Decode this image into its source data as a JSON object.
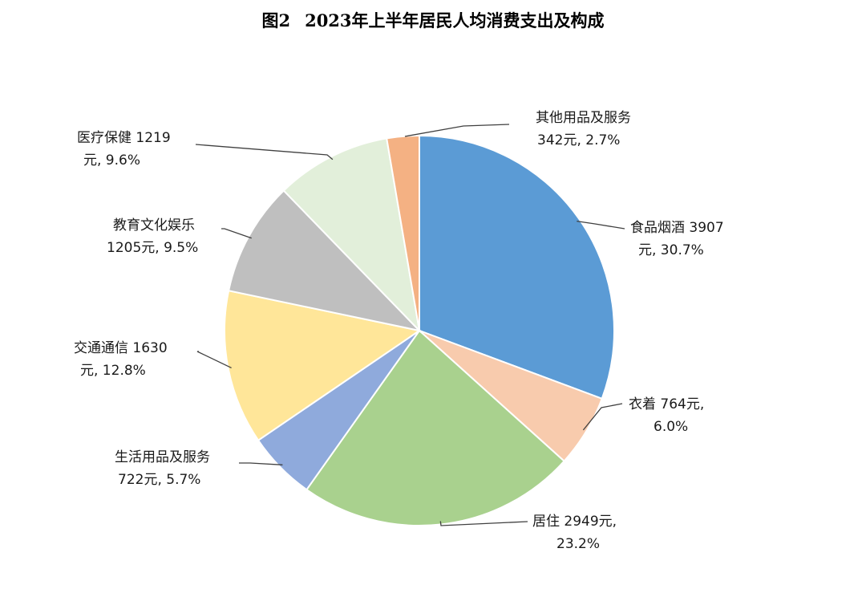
{
  "title": {
    "figure_no": "图2",
    "text": "2023年上半年居民人均消费支出及构成"
  },
  "chart_data": {
    "type": "pie",
    "title": "2023年上半年居民人均消费支出及构成",
    "slices": [
      {
        "name": "食品烟酒",
        "value": 3907,
        "percent": 30.7,
        "color": "#5b9bd5",
        "line1": "食品烟酒 3907",
        "line2": "元, 30.7%"
      },
      {
        "name": "衣着",
        "value": 764,
        "percent": 6.0,
        "color": "#f8cbad",
        "line1": "衣着 764元,",
        "line2": "6.0%"
      },
      {
        "name": "居住",
        "value": 2949,
        "percent": 23.2,
        "color": "#a9d18e",
        "line1": "居住 2949元,",
        "line2": "23.2%"
      },
      {
        "name": "生活用品及服务",
        "value": 722,
        "percent": 5.7,
        "color": "#8faadc",
        "line1": "生活用品及服务",
        "line2": "722元, 5.7%"
      },
      {
        "name": "交通通信",
        "value": 1630,
        "percent": 12.8,
        "color": "#ffe699",
        "line1": "交通通信 1630",
        "line2": "元, 12.8%"
      },
      {
        "name": "教育文化娱乐",
        "value": 1205,
        "percent": 9.5,
        "color": "#bfbfbf",
        "line1": "教育文化娱乐",
        "line2": "1205元, 9.5%"
      },
      {
        "name": "医疗保健",
        "value": 1219,
        "percent": 9.6,
        "color": "#e2efda",
        "line1": "医疗保健 1219",
        "line2": "元, 9.6%"
      },
      {
        "name": "其他用品及服务",
        "value": 342,
        "percent": 2.7,
        "color": "#f4b183",
        "line1": "其他用品及服务",
        "line2": "342元, 2.7%"
      }
    ]
  }
}
